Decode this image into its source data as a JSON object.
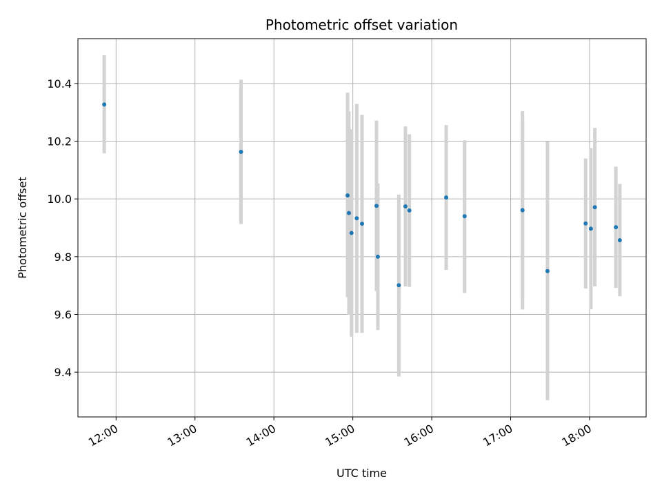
{
  "chart_data": {
    "type": "scatter",
    "title": "Photometric offset variation",
    "xlabel": "UTC time",
    "ylabel": "Photometric offset",
    "x_ticks": [
      "12:00",
      "13:00",
      "14:00",
      "15:00",
      "16:00",
      "17:00",
      "18:00"
    ],
    "y_ticks": [
      "9.4",
      "9.6",
      "9.8",
      "10.0",
      "10.2",
      "10.4"
    ],
    "xlim": [
      "11:31",
      "18:43"
    ],
    "ylim": [
      9.245,
      10.555
    ],
    "grid": true,
    "marker_color": "#1f77b4",
    "errorbar_color": "#d3d3d3",
    "series": [
      {
        "points": [
          {
            "t": "11:51",
            "y": 10.327,
            "lo": 10.158,
            "hi": 10.498
          },
          {
            "t": "13:35",
            "y": 10.163,
            "lo": 9.913,
            "hi": 10.413
          },
          {
            "t": "14:56",
            "y": 10.012,
            "lo": 9.66,
            "hi": 10.368
          },
          {
            "t": "14:57",
            "y": 9.951,
            "lo": 9.599,
            "hi": 10.303
          },
          {
            "t": "14:59",
            "y": 9.882,
            "lo": 9.523,
            "hi": 10.241
          },
          {
            "t": "15:03",
            "y": 9.933,
            "lo": 9.536,
            "hi": 10.329
          },
          {
            "t": "15:07",
            "y": 9.914,
            "lo": 9.536,
            "hi": 10.291
          },
          {
            "t": "15:18",
            "y": 9.976,
            "lo": 9.681,
            "hi": 10.271
          },
          {
            "t": "15:19",
            "y": 9.8,
            "lo": 9.546,
            "hi": 10.054
          },
          {
            "t": "15:35",
            "y": 9.701,
            "lo": 9.385,
            "hi": 10.015
          },
          {
            "t": "15:40",
            "y": 9.974,
            "lo": 9.697,
            "hi": 10.251
          },
          {
            "t": "15:43",
            "y": 9.96,
            "lo": 9.695,
            "hi": 10.224
          },
          {
            "t": "16:11",
            "y": 10.005,
            "lo": 9.754,
            "hi": 10.256
          },
          {
            "t": "16:25",
            "y": 9.94,
            "lo": 9.674,
            "hi": 10.203
          },
          {
            "t": "17:09",
            "y": 9.961,
            "lo": 9.617,
            "hi": 10.304
          },
          {
            "t": "17:09",
            "y": 9.961,
            "lo": 9.645,
            "hi": 10.278
          },
          {
            "t": "17:28",
            "y": 9.75,
            "lo": 9.303,
            "hi": 10.199
          },
          {
            "t": "17:57",
            "y": 9.915,
            "lo": 9.69,
            "hi": 10.14
          },
          {
            "t": "18:01",
            "y": 9.897,
            "lo": 9.618,
            "hi": 10.176
          },
          {
            "t": "18:04",
            "y": 9.971,
            "lo": 9.697,
            "hi": 10.246
          },
          {
            "t": "18:20",
            "y": 9.902,
            "lo": 9.692,
            "hi": 10.112
          },
          {
            "t": "18:23",
            "y": 9.857,
            "lo": 9.663,
            "hi": 10.052
          }
        ]
      }
    ]
  }
}
